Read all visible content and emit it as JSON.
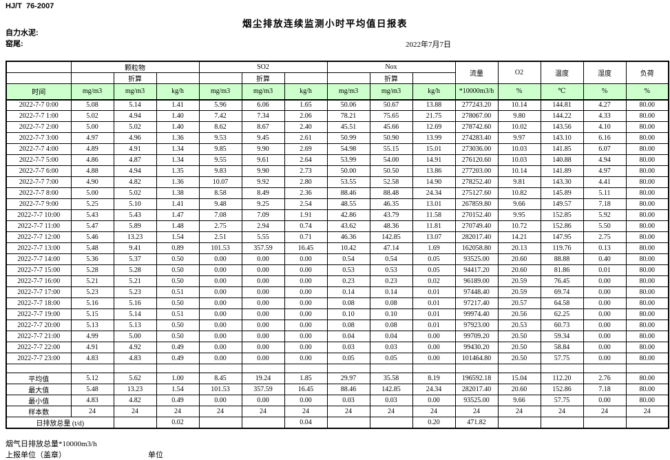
{
  "page": {
    "standard": "HJ/T  76-2007",
    "title": "烟尘排放连续监测小时平均值日报表",
    "company": "自力水泥:",
    "location": "窑尾:",
    "date": "2022年7月7日"
  },
  "colors": {
    "header_green": "#ccffcc"
  },
  "table": {
    "header": {
      "time": "时间",
      "groups": [
        {
          "name": "颗粒物",
          "sub": "折算",
          "units": [
            "mg/m3",
            "mg/m3",
            "kg/h"
          ]
        },
        {
          "name": "SO2",
          "sub": "折算",
          "units": [
            "mg/m3",
            "mg/m3",
            "kg/h"
          ]
        },
        {
          "name": "Nox",
          "sub": "折算",
          "units": [
            "mg/m3",
            "mg/m3",
            "kg/h"
          ]
        }
      ],
      "singles": [
        {
          "name": "流量",
          "unit": "*10000m3/h"
        },
        {
          "name": "O2",
          "unit": "%"
        },
        {
          "name": "温度",
          "unit": "℃"
        },
        {
          "name": "湿度",
          "unit": "%"
        },
        {
          "name": "负荷",
          "unit": "%"
        }
      ]
    },
    "rows": [
      {
        "time": "2022-7-7 0:00",
        "values": [
          "5.08",
          "5.14",
          "1.41",
          "5.96",
          "6.06",
          "1.65",
          "50.06",
          "50.67",
          "13.88",
          "277243.20",
          "10.14",
          "144.81",
          "4.27",
          "80.00"
        ]
      },
      {
        "time": "2022-7-7 1:00",
        "values": [
          "5.02",
          "4.94",
          "1.40",
          "7.42",
          "7.34",
          "2.06",
          "78.21",
          "75.65",
          "21.75",
          "278067.00",
          "9.80",
          "144.22",
          "4.33",
          "80.00"
        ]
      },
      {
        "time": "2022-7-7 2:00",
        "values": [
          "5.00",
          "5.02",
          "1.40",
          "8.62",
          "8.67",
          "2.40",
          "45.51",
          "45.66",
          "12.69",
          "278742.60",
          "10.02",
          "143.56",
          "4.10",
          "80.00"
        ]
      },
      {
        "time": "2022-7-7 3:00",
        "values": [
          "4.97",
          "4.96",
          "1.36",
          "9.53",
          "9.45",
          "2.61",
          "50.99",
          "50.90",
          "13.99",
          "274283.40",
          "9.97",
          "143.10",
          "6.16",
          "80.00"
        ]
      },
      {
        "time": "2022-7-7 4:00",
        "values": [
          "4.89",
          "4.91",
          "1.34",
          "9.85",
          "9.90",
          "2.69",
          "54.98",
          "55.15",
          "15.01",
          "273036.00",
          "10.03",
          "141.85",
          "6.07",
          "80.00"
        ]
      },
      {
        "time": "2022-7-7 5:00",
        "values": [
          "4.86",
          "4.87",
          "1.34",
          "9.55",
          "9.61",
          "2.64",
          "53.99",
          "54.00",
          "14.91",
          "276120.60",
          "10.03",
          "140.88",
          "4.94",
          "80.00"
        ]
      },
      {
        "time": "2022-7-7 6:00",
        "values": [
          "4.88",
          "4.94",
          "1.35",
          "9.83",
          "9.90",
          "2.73",
          "50.00",
          "50.50",
          "13.86",
          "277203.00",
          "10.14",
          "141.89",
          "4.97",
          "80.00"
        ]
      },
      {
        "time": "2022-7-7 7:00",
        "values": [
          "4.90",
          "4.82",
          "1.36",
          "10.07",
          "9.92",
          "2.80",
          "53.55",
          "52.58",
          "14.90",
          "278252.40",
          "9.81",
          "143.30",
          "4.41",
          "80.00"
        ]
      },
      {
        "time": "2022-7-7 8:00",
        "values": [
          "5.00",
          "5.02",
          "1.38",
          "8.58",
          "8.49",
          "2.36",
          "88.46",
          "88.48",
          "24.34",
          "275127.60",
          "10.82",
          "145.89",
          "5.11",
          "80.00"
        ]
      },
      {
        "time": "2022-7-7 9:00",
        "values": [
          "5.25",
          "5.10",
          "1.41",
          "9.48",
          "9.25",
          "2.54",
          "48.55",
          "46.35",
          "13.01",
          "267859.80",
          "9.66",
          "149.57",
          "7.18",
          "80.00"
        ]
      },
      {
        "time": "2022-7-7 10:00",
        "values": [
          "5.43",
          "5.43",
          "1.47",
          "7.08",
          "7.09",
          "1.91",
          "42.86",
          "43.79",
          "11.58",
          "270152.40",
          "9.95",
          "152.85",
          "5.92",
          "80.00"
        ]
      },
      {
        "time": "2022-7-7 11:00",
        "values": [
          "5.47",
          "5.89",
          "1.48",
          "2.75",
          "2.94",
          "0.74",
          "43.62",
          "48.36",
          "11.81",
          "270749.40",
          "10.72",
          "152.86",
          "5.50",
          "80.00"
        ]
      },
      {
        "time": "2022-7-7 12:00",
        "values": [
          "5.46",
          "13.23",
          "1.54",
          "2.51",
          "5.55",
          "0.71",
          "46.36",
          "142.85",
          "13.07",
          "282017.40",
          "14.21",
          "147.95",
          "2.75",
          "80.00"
        ]
      },
      {
        "time": "2022-7-7 13:00",
        "values": [
          "5.48",
          "9.41",
          "0.89",
          "101.53",
          "357.59",
          "16.45",
          "10.42",
          "47.14",
          "1.69",
          "162058.80",
          "20.13",
          "119.76",
          "0.13",
          "80.00"
        ]
      },
      {
        "time": "2022-7-7 14:00",
        "values": [
          "5.36",
          "5.37",
          "0.50",
          "0.00",
          "0.00",
          "0.00",
          "0.54",
          "0.54",
          "0.05",
          "93525.00",
          "20.60",
          "88.88",
          "0.40",
          "80.00"
        ]
      },
      {
        "time": "2022-7-7 15:00",
        "values": [
          "5.28",
          "5.28",
          "0.50",
          "0.00",
          "0.00",
          "0.00",
          "0.53",
          "0.53",
          "0.05",
          "94417.20",
          "20.60",
          "81.86",
          "0.01",
          "80.00"
        ]
      },
      {
        "time": "2022-7-7 16:00",
        "values": [
          "5.21",
          "5.21",
          "0.50",
          "0.00",
          "0.00",
          "0.00",
          "0.23",
          "0.23",
          "0.02",
          "96189.00",
          "20.59",
          "76.45",
          "0.00",
          "80.00"
        ]
      },
      {
        "time": "2022-7-7 17:00",
        "values": [
          "5.23",
          "5.23",
          "0.51",
          "0.00",
          "0.00",
          "0.00",
          "0.14",
          "0.14",
          "0.01",
          "97448.40",
          "20.59",
          "69.74",
          "0.00",
          "80.00"
        ]
      },
      {
        "time": "2022-7-7 18:00",
        "values": [
          "5.16",
          "5.16",
          "0.50",
          "0.00",
          "0.00",
          "0.00",
          "0.08",
          "0.08",
          "0.01",
          "97217.40",
          "20.57",
          "64.58",
          "0.00",
          "80.00"
        ]
      },
      {
        "time": "2022-7-7 19:00",
        "values": [
          "5.15",
          "5.14",
          "0.51",
          "0.00",
          "0.00",
          "0.00",
          "0.10",
          "0.10",
          "0.01",
          "99974.40",
          "20.56",
          "62.25",
          "0.00",
          "80.00"
        ]
      },
      {
        "time": "2022-7-7 20:00",
        "values": [
          "5.13",
          "5.13",
          "0.50",
          "0.00",
          "0.00",
          "0.00",
          "0.08",
          "0.08",
          "0.01",
          "97923.00",
          "20.53",
          "60.73",
          "0.00",
          "80.00"
        ]
      },
      {
        "time": "2022-7-7 21:00",
        "values": [
          "4.99",
          "5.00",
          "0.50",
          "0.00",
          "0.00",
          "0.00",
          "0.04",
          "0.04",
          "0.00",
          "99709.20",
          "20.50",
          "59.34",
          "0.00",
          "80.00"
        ]
      },
      {
        "time": "2022-7-7 22:00",
        "values": [
          "4.91",
          "4.92",
          "0.49",
          "0.00",
          "0.00",
          "0.00",
          "0.03",
          "0.03",
          "0.00",
          "99430.20",
          "20.50",
          "58.84",
          "0.00",
          "80.00"
        ]
      },
      {
        "time": "2022-7-7 23:00",
        "values": [
          "4.83",
          "4.83",
          "0.49",
          "0.00",
          "0.00",
          "0.00",
          "0.05",
          "0.05",
          "0.00",
          "101464.80",
          "20.50",
          "57.75",
          "0.00",
          "80.00"
        ]
      }
    ],
    "summary": [
      {
        "label": "平均值",
        "values": [
          "5.12",
          "5.62",
          "1.00",
          "8.45",
          "19.24",
          "1.85",
          "29.97",
          "35.58",
          "8.19",
          "196592.18",
          "15.04",
          "112.20",
          "2.76",
          "80.00"
        ]
      },
      {
        "label": "最大值",
        "values": [
          "5.48",
          "13.23",
          "1.54",
          "101.53",
          "357.59",
          "16.45",
          "88.46",
          "142.85",
          "24.34",
          "282017.40",
          "20.60",
          "152.86",
          "7.18",
          "80.00"
        ]
      },
      {
        "label": "最小值",
        "values": [
          "4.83",
          "4.82",
          "0.49",
          "0.00",
          "0.00",
          "0.00",
          "0.03",
          "0.03",
          "0.00",
          "93525.00",
          "9.66",
          "57.75",
          "0.00",
          "80.00"
        ]
      },
      {
        "label": "样本数",
        "values": [
          "24",
          "24",
          "24",
          "24",
          "24",
          "24",
          "24",
          "24",
          "24",
          "24",
          "24",
          "24",
          "24",
          "24"
        ]
      }
    ],
    "daily_total": {
      "label": "日排放总量 (t/d)",
      "values": [
        "",
        "0.02",
        "",
        "",
        "0.04",
        "",
        "",
        "0.20",
        "471.82",
        "",
        "",
        "",
        ""
      ]
    }
  },
  "footer": {
    "note": "烟气日排放总量*10000m3/h",
    "report_unit": "上报单位（盖章）",
    "unit": "单位"
  }
}
